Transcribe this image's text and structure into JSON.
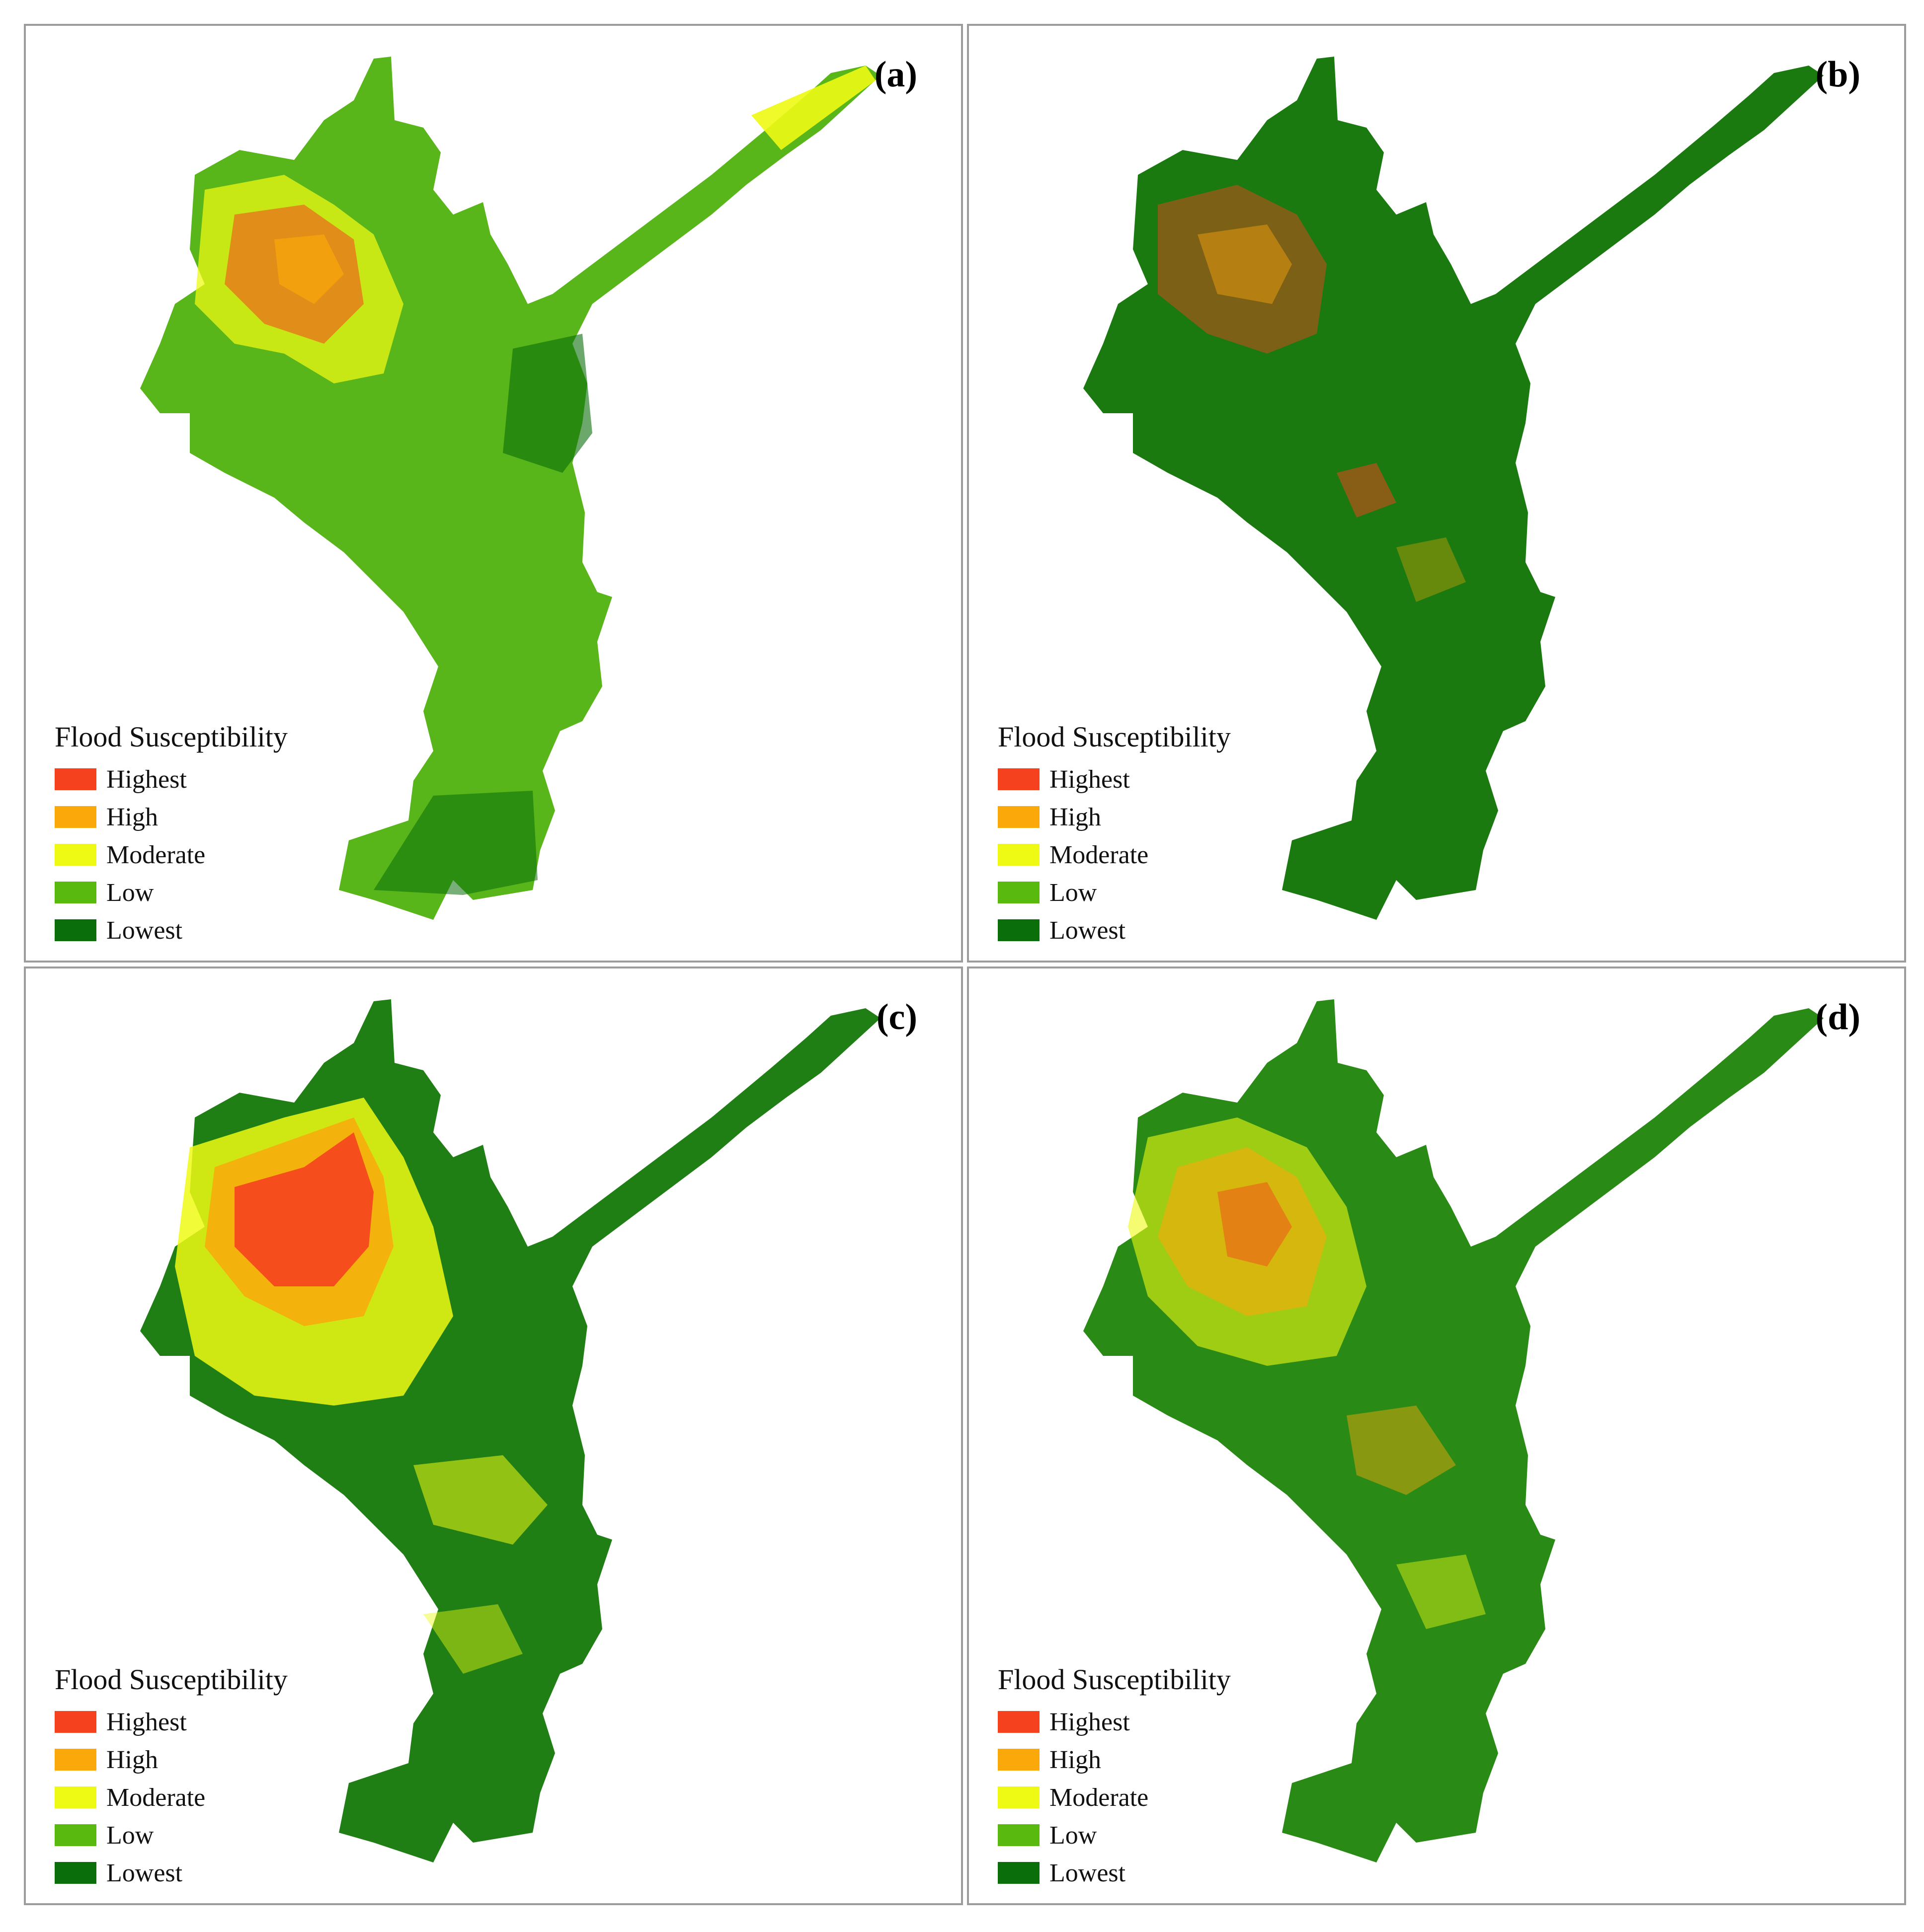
{
  "figure": {
    "panels": [
      {
        "id": "a",
        "label": "(a)",
        "fill": "#58b51a",
        "dominant": "Moderate/Low"
      },
      {
        "id": "b",
        "label": "(b)",
        "fill": "#1a7a10",
        "dominant": "Lowest"
      },
      {
        "id": "c",
        "label": "(c)",
        "fill": "#1f7f14",
        "dominant": "Lowest"
      },
      {
        "id": "d",
        "label": "(d)",
        "fill": "#2a8a16",
        "dominant": "Lowest"
      }
    ],
    "legend": {
      "title": "Flood Susceptibility",
      "classes": [
        {
          "label": "Highest",
          "color": "#f5411e"
        },
        {
          "label": "High",
          "color": "#faa80a"
        },
        {
          "label": "Moderate",
          "color": "#eefa14"
        },
        {
          "label": "Low",
          "color": "#5ab90f"
        },
        {
          "label": "Lowest",
          "color": "#0a6e0a"
        }
      ]
    }
  }
}
